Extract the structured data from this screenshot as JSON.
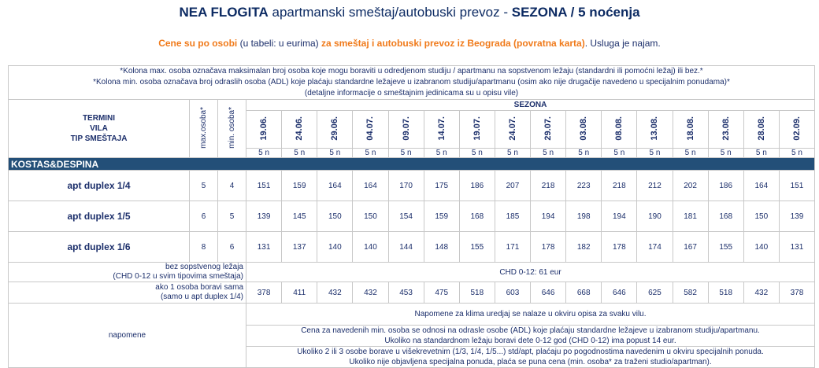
{
  "title": {
    "bold1": "NEA FLOGITA",
    "normal": " apartmanski smeštaj/autobuski prevoz - ",
    "bold2": "SEZONA / 5 noćenja"
  },
  "subtitle": {
    "p1": "Cene su po osobi",
    "p2": " (u tabeli: u eurima) ",
    "p3": "za smeštaj i autobuski prevoz iz Beograda (povratna karta)",
    "p4": ". Usluga je najam."
  },
  "notes": [
    "*Kolona max. osoba označava maksimalan broj osoba koje mogu boraviti u odredjenom studiju / apartmanu na sopstvenom ležaju (standardni ili pomoćni ležaj) ili bez.*",
    "*Kolona min. osoba označava broj odraslih osoba (ADL) koje plaćaju standardne ležajeve u izabranom studiju/apartmanu (osim ako nije drugačije navedeno u specijalnim ponudama)*",
    "(detaljne informacije o smeštajnim jedinicama su u opisu vile)"
  ],
  "header": {
    "termini": "TERMINI",
    "vila": "VILA",
    "tip": "TIP SMEŠTAJA",
    "max": "max.osoba*",
    "min": "min. osoba*",
    "sezona": "SEZONA"
  },
  "dates": [
    "19.06.",
    "24.06.",
    "29.06.",
    "04.07.",
    "09.07.",
    "14.07.",
    "19.07.",
    "24.07.",
    "29.07.",
    "03.08.",
    "08.08.",
    "13.08.",
    "18.08.",
    "23.08.",
    "28.08.",
    "02.09."
  ],
  "nights": "5 n",
  "section": "KOSTAS&DESPINA",
  "rows": [
    {
      "type": "apt duplex 1/4",
      "max": "5",
      "min": "4",
      "prices": [
        "151",
        "159",
        "164",
        "164",
        "170",
        "175",
        "186",
        "207",
        "218",
        "223",
        "218",
        "212",
        "202",
        "186",
        "164",
        "151"
      ]
    },
    {
      "type": "apt duplex 1/5",
      "max": "6",
      "min": "5",
      "prices": [
        "139",
        "145",
        "150",
        "150",
        "154",
        "159",
        "168",
        "185",
        "194",
        "198",
        "194",
        "190",
        "181",
        "168",
        "150",
        "139"
      ]
    },
    {
      "type": "apt duplex 1/6",
      "max": "8",
      "min": "6",
      "prices": [
        "131",
        "137",
        "140",
        "140",
        "144",
        "148",
        "155",
        "171",
        "178",
        "182",
        "178",
        "174",
        "167",
        "155",
        "140",
        "131"
      ]
    }
  ],
  "bez": {
    "label1": "bez sopstvenog ležaja",
    "label2": "(CHD 0-12 u svim tipovima smeštaja)",
    "value": "CHD 0-12: 61 eur"
  },
  "sama": {
    "label1": "ako 1 osoba boravi sama",
    "label2": "(samo u apt duplex 1/4)",
    "prices": [
      "378",
      "411",
      "432",
      "432",
      "453",
      "475",
      "518",
      "603",
      "646",
      "668",
      "646",
      "625",
      "582",
      "518",
      "432",
      "378"
    ]
  },
  "napomene": {
    "label": "napomene",
    "n1": "Napomene za klima uredjaj se nalaze u okviru opisa za svaku vilu.",
    "n2a": "Cena za  navedenih min. osoba se odnosi na odrasle osobe (ADL) koje plaćaju standardne ležajeve u izabranom studiju/apartmanu.",
    "n2b": "Ukoliko na standardnom ležaju boravi dete 0-12 god (CHD 0-12) ima popust 14 eur.",
    "n3a": "Ukoliko 2 ili 3 osobe borave u višekrevetnim (1/3, 1/4, 1/5...) std/apt, plaćaju po pogodnostima navedenim u okviru specijalnih ponuda.",
    "n3b": "Ukoliko nije objavljena specijalna ponuda, plaća se puna cena (min. osoba* za traženi studio/apartman)."
  },
  "colors": {
    "section_bg": "#234f78",
    "accent_orange": "#f07a1a",
    "text_navy": "#1c2f6b"
  }
}
